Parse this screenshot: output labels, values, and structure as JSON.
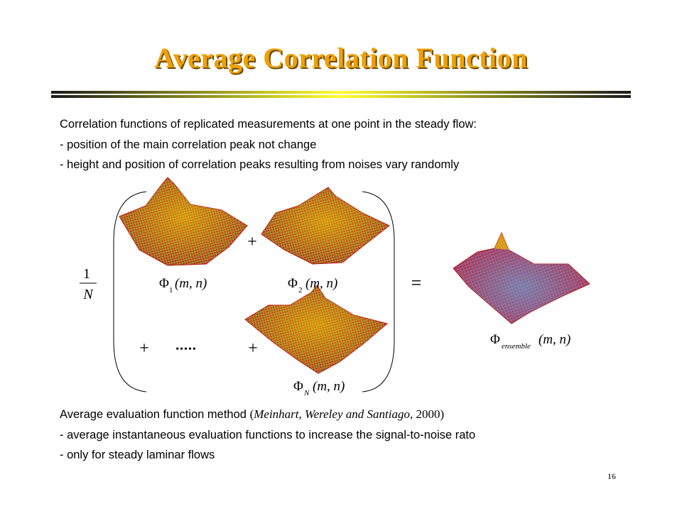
{
  "slide": {
    "title": "Average Correlation Function",
    "intro": "Correlation functions of replicated measurements at one point in the steady flow:",
    "bullets_top": [
      "- position of the main correlation peak not change",
      "- height and position of correlation peaks resulting from noises vary randomly"
    ],
    "method_label": "Average evaluation function method",
    "citation_open": "(",
    "citation_authors": "Meinhart, Wereley  and Santiago,",
    "citation_year": " 2000)",
    "bullets_bottom": [
      "- average instantaneous evaluation functions to increase the signal-to-noise rato",
      "- only for steady laminar flows"
    ],
    "page_number": "16"
  },
  "equation": {
    "fraction_num": "1",
    "fraction_den": "N",
    "plus": "+",
    "dots": "•••••",
    "equals": "=",
    "phi": "Φ",
    "sub_1": "1",
    "sub_2": "2",
    "sub_n": "N",
    "sub_ensemble": "ensemble",
    "args": "(m, n)"
  },
  "colors": {
    "title": "#f0a000",
    "title_shadow": "#6b4a00",
    "surface_red": "#d81818",
    "surface_green": "#7aa83c",
    "surface_blue": "#7070c0"
  }
}
